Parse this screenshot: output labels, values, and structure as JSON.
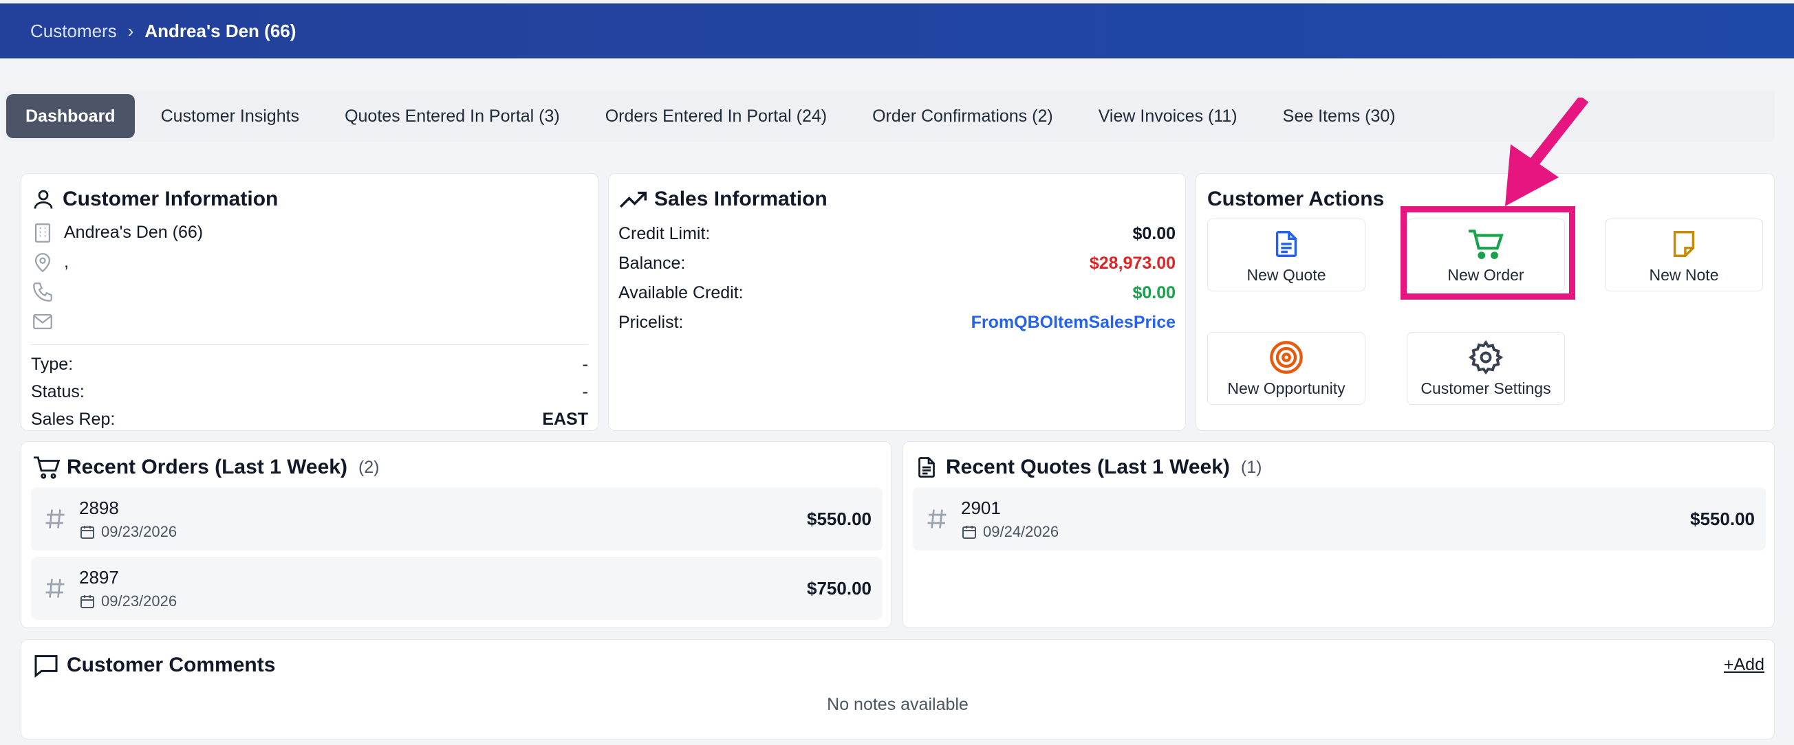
{
  "breadcrumb": {
    "parent": "Customers",
    "separator": "›",
    "current": "Andrea's Den (66)"
  },
  "tabs": [
    {
      "label": "Dashboard",
      "active": true
    },
    {
      "label": "Customer Insights"
    },
    {
      "label": "Quotes Entered In Portal (3)"
    },
    {
      "label": "Orders Entered In Portal (24)"
    },
    {
      "label": "Order Confirmations (2)"
    },
    {
      "label": "View Invoices (11)"
    },
    {
      "label": "See Items (30)"
    }
  ],
  "customer_info": {
    "title": "Customer Information",
    "name": "Andrea's Den (66)",
    "address": ",",
    "phone": "",
    "email": "",
    "fields": [
      {
        "label": "Type:",
        "value": "-"
      },
      {
        "label": "Status:",
        "value": "-"
      },
      {
        "label": "Sales Rep:",
        "value": "EAST"
      }
    ]
  },
  "sales_info": {
    "title": "Sales Information",
    "fields": [
      {
        "label": "Credit Limit:",
        "value": "$0.00",
        "color": "#111827"
      },
      {
        "label": "Balance:",
        "value": "$28,973.00",
        "color": "#dc2626"
      },
      {
        "label": "Available Credit:",
        "value": "$0.00",
        "color": "#16a34a"
      },
      {
        "label": "Pricelist:",
        "value": "FromQBOItemSalesPrice",
        "color": "#2563eb"
      }
    ]
  },
  "customer_actions": {
    "title": "Customer Actions",
    "items": [
      {
        "label": "New Quote",
        "icon": "document-icon",
        "color": "#2563eb"
      },
      {
        "label": "New Order",
        "icon": "cart-icon",
        "color": "#16a34a"
      },
      {
        "label": "New Note",
        "icon": "note-icon",
        "color": "#ca8a04"
      },
      {
        "label": "New Opportunity",
        "icon": "target-icon",
        "color": "#ea580c"
      },
      {
        "label": "Customer Settings",
        "icon": "gear-icon",
        "color": "#374151"
      }
    ]
  },
  "recent_orders": {
    "title": "Recent Orders (Last 1 Week)",
    "count": "(2)",
    "rows": [
      {
        "number": "2898",
        "date": "09/23/2026",
        "amount": "$550.00"
      },
      {
        "number": "2897",
        "date": "09/23/2026",
        "amount": "$750.00"
      }
    ]
  },
  "recent_quotes": {
    "title": "Recent Quotes (Last 1 Week)",
    "count": "(1)",
    "rows": [
      {
        "number": "2901",
        "date": "09/24/2026",
        "amount": "$550.00"
      }
    ]
  },
  "comments": {
    "title": "Customer Comments",
    "add_label": "+Add",
    "empty_text": "No notes available"
  },
  "annotation": {
    "highlight_color": "#e6157f"
  }
}
